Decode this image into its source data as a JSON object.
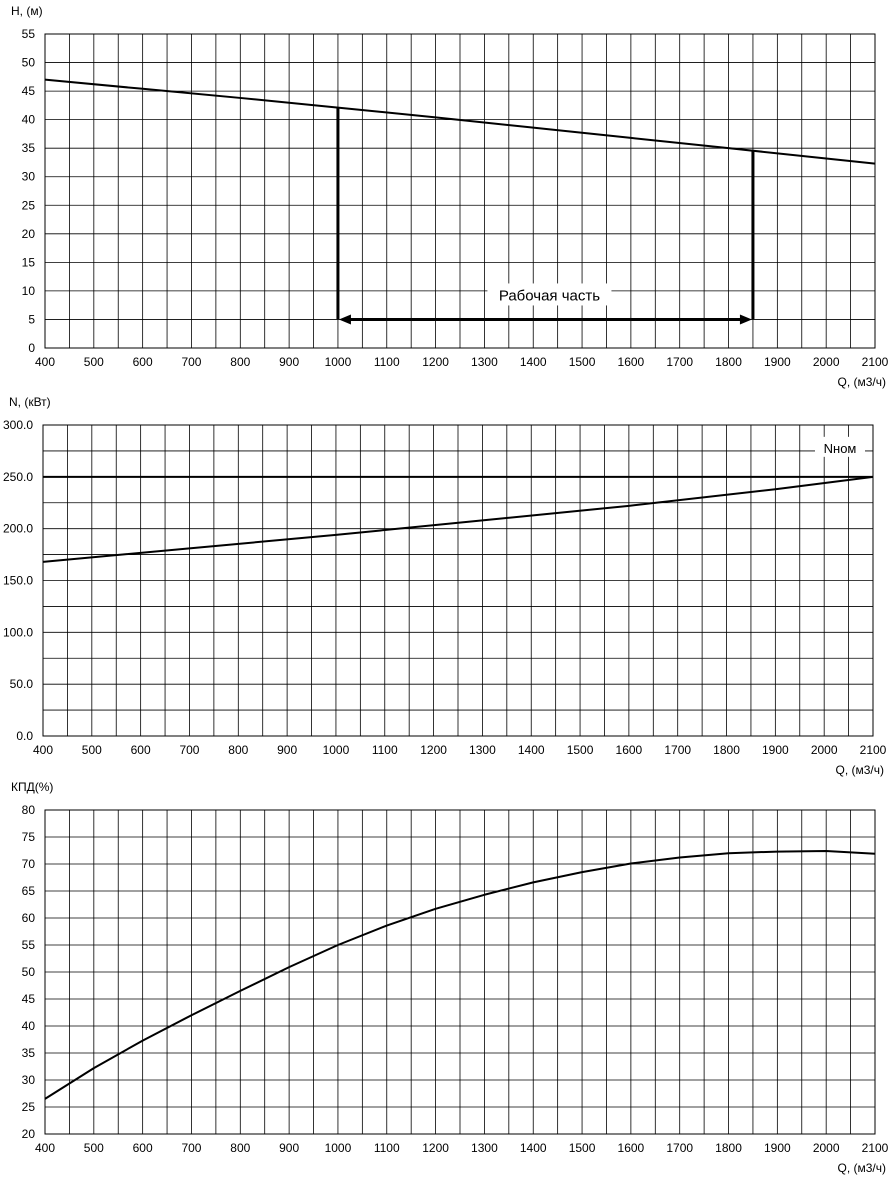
{
  "chart_data": [
    {
      "type": "line",
      "ylabel": "H, (м)",
      "xlabel": "Q, (м3/ч)",
      "xlim": [
        400,
        2100
      ],
      "ylim": [
        0,
        55
      ],
      "x_ticks": [
        "400",
        "500",
        "600",
        "700",
        "800",
        "900",
        "1000",
        "1100",
        "1200",
        "1300",
        "1400",
        "1500",
        "1600",
        "1700",
        "1800",
        "1900",
        "2000",
        "2100"
      ],
      "y_ticks": [
        "0",
        "5",
        "10",
        "15",
        "20",
        "25",
        "30",
        "35",
        "40",
        "45",
        "50",
        "55"
      ],
      "grid": true,
      "series": [
        {
          "x": [
            400,
            600,
            800,
            1000,
            1200,
            1400,
            1600,
            1800,
            2000,
            2100
          ],
          "values": [
            47.0,
            45.4,
            43.8,
            42.1,
            40.4,
            38.6,
            36.8,
            35.0,
            33.2,
            32.3
          ]
        }
      ],
      "annotations": [
        {
          "text": "Рабочая часть",
          "range_x": [
            1000,
            1850
          ],
          "y": 5
        }
      ]
    },
    {
      "type": "line",
      "ylabel": "N, (кВт)",
      "xlabel": "Q, (м3/ч)",
      "xlim": [
        400,
        2100
      ],
      "ylim": [
        0,
        300
      ],
      "x_ticks": [
        "400",
        "500",
        "600",
        "700",
        "800",
        "900",
        "1000",
        "1100",
        "1200",
        "1300",
        "1400",
        "1500",
        "1600",
        "1700",
        "1800",
        "1900",
        "2000",
        "2100"
      ],
      "y_ticks": [
        "0.0",
        "50.0",
        "100.0",
        "150.0",
        "200.0",
        "250.0",
        "300.0"
      ],
      "grid": true,
      "series": [
        {
          "x": [
            400,
            700,
            1000,
            1300,
            1600,
            1900,
            2100
          ],
          "values": [
            168,
            181,
            194,
            208,
            222,
            238,
            250
          ]
        }
      ],
      "hlines": [
        {
          "label": "Nном",
          "y": 250
        }
      ]
    },
    {
      "type": "line",
      "ylabel": "КПД(%)",
      "xlabel": "Q, (м3/ч)",
      "xlim": [
        400,
        2100
      ],
      "ylim": [
        20,
        80
      ],
      "x_ticks": [
        "400",
        "500",
        "600",
        "700",
        "800",
        "900",
        "1000",
        "1100",
        "1200",
        "1300",
        "1400",
        "1500",
        "1600",
        "1700",
        "1800",
        "1900",
        "2000",
        "2100"
      ],
      "y_ticks": [
        "20",
        "25",
        "30",
        "35",
        "40",
        "45",
        "50",
        "55",
        "60",
        "65",
        "70",
        "75",
        "80"
      ],
      "grid": true,
      "series": [
        {
          "x": [
            400,
            500,
            600,
            700,
            800,
            900,
            1000,
            1100,
            1200,
            1300,
            1400,
            1500,
            1600,
            1700,
            1800,
            1900,
            2000,
            2100
          ],
          "values": [
            26.5,
            32.2,
            37.3,
            42.0,
            46.5,
            50.9,
            55.0,
            58.6,
            61.7,
            64.3,
            66.6,
            68.5,
            70.1,
            71.2,
            72.0,
            72.3,
            72.4,
            71.9
          ]
        }
      ]
    }
  ]
}
